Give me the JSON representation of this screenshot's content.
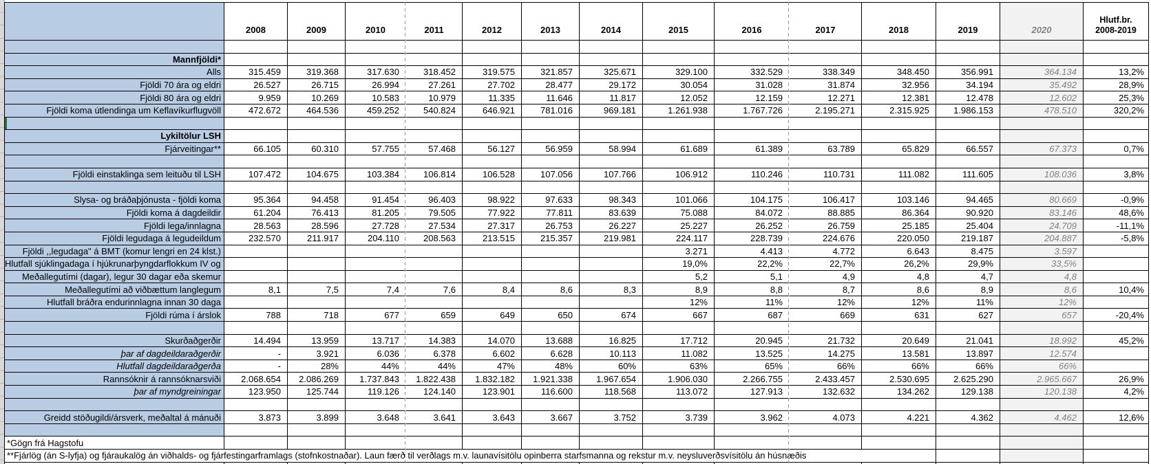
{
  "table": {
    "corner_label": "",
    "columns": [
      "2008",
      "2009",
      "2010",
      "2011",
      "2012",
      "2013",
      "2014",
      "2015",
      "2016",
      "2017",
      "2018",
      "2019",
      "2020"
    ],
    "last_column": {
      "line1": "Hlutf.br.",
      "line2": "2008-2019"
    },
    "rows": [
      {
        "t": "blank"
      },
      {
        "t": "section",
        "label": "Mannfjöldi*"
      },
      {
        "t": "data",
        "label": "Alls",
        "v": [
          "315.459",
          "319.368",
          "317.630",
          "318.452",
          "319.575",
          "321.857",
          "325.671",
          "329.100",
          "332.529",
          "338.349",
          "348.450",
          "356.991",
          "364.134",
          "13,2%"
        ]
      },
      {
        "t": "data",
        "label": "Fjöldi 70 ára og eldri",
        "v": [
          "26.527",
          "26.715",
          "26.994",
          "27.261",
          "27.702",
          "28.477",
          "29.172",
          "30.054",
          "31.028",
          "31.874",
          "32.956",
          "34.194",
          "35.492",
          "28,9%"
        ]
      },
      {
        "t": "data",
        "label": "Fjöldi 80 ára og eldri",
        "v": [
          "9.959",
          "10.269",
          "10.583",
          "10.979",
          "11.335",
          "11.646",
          "11.817",
          "12.052",
          "12.159",
          "12.271",
          "12.381",
          "12.478",
          "12.602",
          "25,3%"
        ]
      },
      {
        "t": "data",
        "label": "Fjöldi koma útlendinga  um  Keflavíkurflugvöll",
        "v": [
          "472.672",
          "464.536",
          "459.252",
          "540.824",
          "646.921",
          "781.016",
          "969.181",
          "1.261.938",
          "1.767.726",
          "2.195.271",
          "2.315.925",
          "1.986.153",
          "478.510",
          "320,2%"
        ]
      },
      {
        "t": "blank",
        "green": true
      },
      {
        "t": "section",
        "label": "Lykiltölur LSH"
      },
      {
        "t": "data",
        "label": "Fjárveitingar**",
        "v": [
          "66.105",
          "60.310",
          "57.755",
          "57.468",
          "56.127",
          "56.959",
          "58.994",
          "61.689",
          "61.389",
          "63.789",
          "65.829",
          "66.557",
          "67.373",
          "0,7%"
        ]
      },
      {
        "t": "blank"
      },
      {
        "t": "data",
        "label": "Fjöldi einstaklinga sem leituðu til LSH",
        "v": [
          "107.472",
          "104.675",
          "103.384",
          "106.814",
          "106.528",
          "107.056",
          "107.766",
          "106.912",
          "110.246",
          "110.731",
          "111.082",
          "111.605",
          "108.036",
          "3,8%"
        ]
      },
      {
        "t": "blank"
      },
      {
        "t": "data",
        "label": "Slysa- og bráðaþjónusta - fjöldi koma",
        "v": [
          "95.364",
          "94.458",
          "91.454",
          "96.403",
          "98.922",
          "97.633",
          "98.343",
          "101.066",
          "104.175",
          "106.417",
          "103.146",
          "94.465",
          "80.669",
          "-0,9%"
        ]
      },
      {
        "t": "data",
        "label": "Fjöldi koma á dagdeildir",
        "v": [
          "61.204",
          "76.413",
          "81.205",
          "79.505",
          "77.922",
          "77.811",
          "83.639",
          "75.088",
          "84.072",
          "88.885",
          "86.364",
          "90.920",
          "83.146",
          "48,6%"
        ]
      },
      {
        "t": "data",
        "label": "Fjöldi lega/innlagna",
        "v": [
          "28.563",
          "28.596",
          "27.728",
          "27.534",
          "27.317",
          "26.753",
          "26.227",
          "25.227",
          "26.252",
          "26.759",
          "25.185",
          "25.404",
          "24.709",
          "-11,1%"
        ]
      },
      {
        "t": "data",
        "label": "Fjöldi legudaga á legudeildum",
        "v": [
          "232.570",
          "211.917",
          "204.110",
          "208.563",
          "213.515",
          "215.357",
          "219.981",
          "224.117",
          "228.739",
          "224.676",
          "220.050",
          "219.187",
          "204.887",
          "-5,8%"
        ]
      },
      {
        "t": "data",
        "label": "Fjöldi ,,legudaga\" á BMT (komur lengri en 24 klst.)",
        "v": [
          "",
          "",
          "",
          "",
          "",
          "",
          "",
          "3.271",
          "4.413",
          "4.772",
          "6.643",
          "8.475",
          "3.597",
          ""
        ]
      },
      {
        "t": "data",
        "label": "Hlutfall sjúklingadaga í hjúkrunarþyngdarflokkum IV og V",
        "v": [
          "",
          "",
          "",
          "",
          "",
          "",
          "",
          "19,0%",
          "22,2%",
          "22,7%",
          "26,2%",
          "29,9%",
          "33,5%",
          ""
        ]
      },
      {
        "t": "data",
        "label": "Meðallegutími (dagar), legur 30 dagar eða skemur",
        "v": [
          "",
          "",
          "",
          "",
          "",
          "",
          "",
          "5,2",
          "5,1",
          "4,9",
          "4,8",
          "4,7",
          "4,8",
          ""
        ]
      },
      {
        "t": "data",
        "label": "Meðallegutími að viðbættum  langlegum",
        "v": [
          "8,1",
          "7,5",
          "7,4",
          "7,6",
          "8,4",
          "8,6",
          "8,3",
          "8,9",
          "8,8",
          "8,7",
          "8,6",
          "8,9",
          "8,6",
          "10,4%"
        ]
      },
      {
        "t": "data",
        "label": "Hlutfall  bráðra endurinnlagna innan 30 daga",
        "v": [
          "",
          "",
          "",
          "",
          "",
          "",
          "",
          "12%",
          "11%",
          "12%",
          "12%",
          "11%",
          "12%",
          ""
        ]
      },
      {
        "t": "data",
        "label": "Fjöldi rúma í árslok",
        "v": [
          "788",
          "718",
          "677",
          "659",
          "649",
          "650",
          "674",
          "667",
          "687",
          "669",
          "631",
          "627",
          "657",
          "-20,4%"
        ]
      },
      {
        "t": "blank"
      },
      {
        "t": "data",
        "label": "Skurðaðgerðir",
        "v": [
          "14.494",
          "13.959",
          "13.717",
          "14.383",
          "14.070",
          "13.688",
          "16.825",
          "17.712",
          "20.945",
          "21.732",
          "20.649",
          "21.041",
          "18.992",
          "45,2%"
        ]
      },
      {
        "t": "data",
        "italic": true,
        "label": "þar af dagdeildaraðgerðir",
        "v": [
          "-",
          "3.921",
          "6.036",
          "6.378",
          "6.602",
          "6.628",
          "10.113",
          "11.082",
          "13.525",
          "14.275",
          "13.581",
          "13.897",
          "12.574",
          ""
        ]
      },
      {
        "t": "data",
        "italic": true,
        "label": "Hlutfall dagdeildaraðgerða",
        "v": [
          "-",
          "28%",
          "44%",
          "44%",
          "47%",
          "48%",
          "60%",
          "63%",
          "65%",
          "66%",
          "66%",
          "66%",
          "66%",
          ""
        ]
      },
      {
        "t": "data",
        "label": "Rannsóknir á rannsóknarsviði",
        "v": [
          "2.068.654",
          "2.086.269",
          "1.737.843",
          "1.822.438",
          "1.832.182",
          "1.921.338",
          "1.967.654",
          "1.906.030",
          "2.266.755",
          "2.433.457",
          "2.530.695",
          "2.625.290",
          "2.965.667",
          "26,9%"
        ]
      },
      {
        "t": "data",
        "italic": true,
        "label": "þar af myndgreiningar",
        "v": [
          "123.950",
          "125.744",
          "119.126",
          "124.140",
          "123.901",
          "116.600",
          "118.568",
          "113.072",
          "127.913",
          "132.632",
          "134.262",
          "129.138",
          "120.138",
          "4,2%"
        ]
      },
      {
        "t": "blank"
      },
      {
        "t": "data",
        "label": "Greidd stöðugildi/ársverk, meðaltal á mánuði",
        "v": [
          "3.873",
          "3.899",
          "3.648",
          "3.641",
          "3.643",
          "3.667",
          "3.752",
          "3.739",
          "3.962",
          "4.073",
          "4.221",
          "4.362",
          "4.462",
          "12,6%"
        ]
      },
      {
        "t": "blank"
      },
      {
        "t": "note",
        "label": "*Gögn frá Hagstofu"
      },
      {
        "t": "widenote",
        "label": "**Fjárlög (án S-lyfja) og fjáraukalög án viðhalds- og fjárfestingarframlags (stofnkostnaðar). Laun færð til verðlags m.v. launavísitölu opinberra starfsmanna og rekstur m.v. neysluverðsvísitölu án húsnæðis"
      },
      {
        "t": "blank",
        "white": true
      }
    ]
  },
  "colors": {
    "label_column_bg": "#b8cce4",
    "forecast_column_bg": "#f2f2f2",
    "forecast_text": "#808080",
    "grid_border": "#000000",
    "page_break_dash": "#999999",
    "selection_green": "#217346"
  }
}
